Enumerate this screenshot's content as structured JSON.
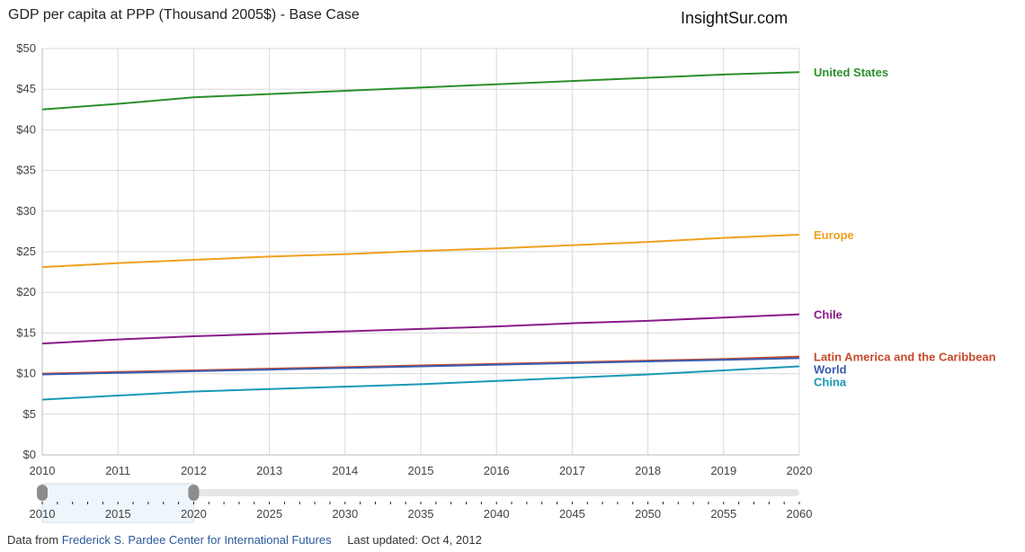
{
  "header": {
    "title": "GDP per capita at PPP (Thousand 2005$) - Base Case",
    "brand": "InsightSur.com"
  },
  "footer": {
    "prefix": "Data from",
    "source_link": "Frederick S. Pardee Center for International Futures",
    "updated": "Last updated: Oct 4, 2012"
  },
  "chart_data": {
    "type": "line",
    "x": [
      2010,
      2011,
      2012,
      2013,
      2014,
      2015,
      2016,
      2017,
      2018,
      2019,
      2020
    ],
    "xlim": [
      2010,
      2020
    ],
    "ylim": [
      0,
      50
    ],
    "y_ticks": [
      0,
      5,
      10,
      15,
      20,
      25,
      30,
      35,
      40,
      45,
      50
    ],
    "y_tick_labels": [
      "$0",
      "$5",
      "$10",
      "$15",
      "$20",
      "$25",
      "$30",
      "$35",
      "$40",
      "$45",
      "$50"
    ],
    "grid": true,
    "legend": "right-end labels",
    "series": [
      {
        "name": "United States",
        "color": "#2a8f2a",
        "values": [
          42.5,
          43.2,
          44.0,
          44.4,
          44.8,
          45.2,
          45.6,
          46.0,
          46.4,
          46.8,
          47.1
        ]
      },
      {
        "name": "Europe",
        "color": "#f0a020",
        "values": [
          23.1,
          23.6,
          24.0,
          24.4,
          24.7,
          25.1,
          25.4,
          25.8,
          26.2,
          26.7,
          27.1
        ]
      },
      {
        "name": "Chile",
        "color": "#8a1a8a",
        "values": [
          13.7,
          14.2,
          14.6,
          14.9,
          15.2,
          15.5,
          15.8,
          16.2,
          16.5,
          16.9,
          17.3
        ]
      },
      {
        "name": "Latin America and the Caribbean",
        "color": "#c84a2a",
        "values": [
          10.0,
          10.2,
          10.4,
          10.6,
          10.8,
          11.0,
          11.2,
          11.4,
          11.6,
          11.8,
          12.1
        ]
      },
      {
        "name": "World",
        "color": "#3a5cb0",
        "values": [
          9.9,
          10.1,
          10.3,
          10.5,
          10.7,
          10.9,
          11.1,
          11.3,
          11.5,
          11.7,
          11.9
        ]
      },
      {
        "name": "China",
        "color": "#1a98b8",
        "values": [
          6.8,
          7.3,
          7.8,
          8.1,
          8.4,
          8.7,
          9.1,
          9.5,
          9.9,
          10.4,
          10.9
        ]
      }
    ]
  },
  "range_slider": {
    "tick_labels": [
      "2010",
      "2015",
      "2020",
      "2025",
      "2030",
      "2035",
      "2040",
      "2045",
      "2050",
      "2055",
      "2060"
    ],
    "domain": [
      2010,
      2060
    ],
    "selected": [
      2010,
      2020
    ]
  }
}
